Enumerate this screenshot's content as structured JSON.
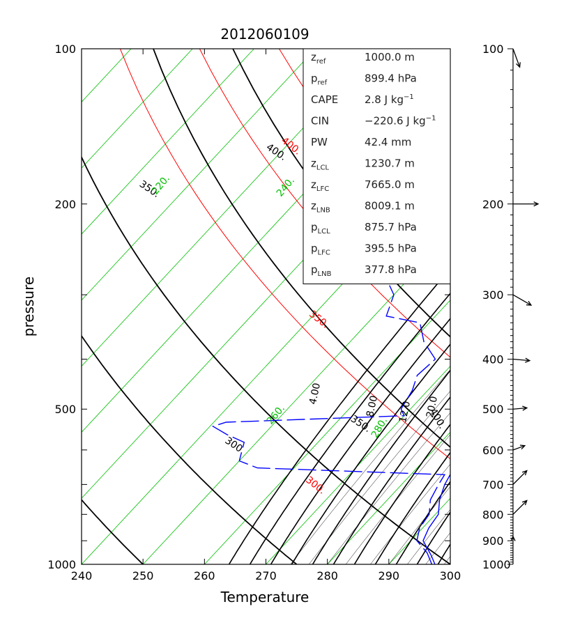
{
  "chart_data": {
    "type": "skew-t",
    "title": "2012060109",
    "xlabel": "Temperature",
    "ylabel": "pressure",
    "x_range": [
      240,
      300
    ],
    "y_range": [
      1000,
      100
    ],
    "y_scale": "log",
    "x_ticks": [
      "240",
      "250",
      "260",
      "270",
      "280",
      "290",
      "300"
    ],
    "y_ticks": [
      "100",
      "200",
      "500",
      "1000"
    ],
    "wind_ticks": [
      "100",
      "200",
      "300",
      "400",
      "500",
      "600",
      "700",
      "800",
      "900",
      "1000"
    ],
    "colors": {
      "dry_adiabat": "#000000",
      "isentrope": "#ff0000",
      "isotherm": "#00c000",
      "mixing_ratio": "#000000",
      "profile": "#0000ff"
    },
    "dry_adiabats": [
      {
        "theta": 300,
        "label": "300"
      },
      {
        "theta": 350,
        "label": "350."
      },
      {
        "theta": 400,
        "label": "400."
      }
    ],
    "isentropes": [
      {
        "theta": 300,
        "label": "300."
      },
      {
        "theta": 350,
        "label": "350."
      },
      {
        "theta": 400,
        "label": "400."
      }
    ],
    "isotherms": [
      {
        "t": 220,
        "label": "220."
      },
      {
        "t": 240,
        "label": "240."
      },
      {
        "t": 260,
        "label": "260."
      },
      {
        "t": 280,
        "label": "280."
      }
    ],
    "mixing_ratios": [
      {
        "w": 4,
        "label": "4.00"
      },
      {
        "w": 8,
        "label": "8.00"
      },
      {
        "w": 12,
        "label": "12.0"
      },
      {
        "w": 20,
        "label": "20.0"
      }
    ],
    "temperature_profile": [
      {
        "p": 1000,
        "t": 297.5
      },
      {
        "p": 960,
        "t": 295.5
      },
      {
        "p": 900,
        "t": 292.0
      },
      {
        "p": 850,
        "t": 291.0
      },
      {
        "p": 800,
        "t": 290.5
      },
      {
        "p": 750,
        "t": 288.5
      },
      {
        "p": 700,
        "t": 287.0
      },
      {
        "p": 650,
        "t": 286.0
      },
      {
        "p": 600,
        "t": 285.5
      },
      {
        "p": 550,
        "t": 284.5
      },
      {
        "p": 500,
        "t": 282.0
      },
      {
        "p": 450,
        "t": 278.5
      },
      {
        "p": 400,
        "t": 274.0
      },
      {
        "p": 350,
        "t": 269.0
      },
      {
        "p": 300,
        "t": 263.5
      },
      {
        "p": 260,
        "t": 258.5
      },
      {
        "p": 230,
        "t": 253.0
      },
      {
        "p": 200,
        "t": 248.0
      },
      {
        "p": 180,
        "t": 246.0
      },
      {
        "p": 160,
        "t": 245.0
      },
      {
        "p": 140,
        "t": 244.5
      },
      {
        "p": 120,
        "t": 243.5
      },
      {
        "p": 110,
        "t": 243.5
      },
      {
        "p": 100,
        "t": 244.5
      }
    ],
    "dewpoint_profile": [
      {
        "p": 1000,
        "t": 297.0
      },
      {
        "p": 950,
        "t": 294.5
      },
      {
        "p": 900,
        "t": 291.0
      },
      {
        "p": 850,
        "t": 289.5
      },
      {
        "p": 800,
        "t": 289.0
      },
      {
        "p": 750,
        "t": 287.0
      },
      {
        "p": 700,
        "t": 286.0
      },
      {
        "p": 670,
        "t": 285.5
      },
      {
        "p": 650,
        "t": 254.0
      },
      {
        "p": 630,
        "t": 250.0
      },
      {
        "p": 580,
        "t": 248.0
      },
      {
        "p": 560,
        "t": 244.0
      },
      {
        "p": 540,
        "t": 240.5
      },
      {
        "p": 530,
        "t": 242.0
      },
      {
        "p": 515,
        "t": 270.0
      },
      {
        "p": 500,
        "t": 268.5
      },
      {
        "p": 460,
        "t": 267.5
      },
      {
        "p": 430,
        "t": 266.0
      },
      {
        "p": 400,
        "t": 266.5
      },
      {
        "p": 370,
        "t": 262.0
      },
      {
        "p": 340,
        "t": 258.5
      },
      {
        "p": 330,
        "t": 252.0
      },
      {
        "p": 300,
        "t": 250.0
      },
      {
        "p": 280,
        "t": 246.5
      },
      {
        "p": 250,
        "t": 244.5
      },
      {
        "p": 220,
        "t": 242.5
      },
      {
        "p": 200,
        "t": 244.0
      },
      {
        "p": 190,
        "t": 242.5
      }
    ],
    "winds": [
      {
        "p": 100,
        "dir": 340,
        "spd": 28
      },
      {
        "p": 200,
        "dir": 270,
        "spd": 36
      },
      {
        "p": 300,
        "dir": 300,
        "spd": 30
      },
      {
        "p": 400,
        "dir": 275,
        "spd": 24
      },
      {
        "p": 500,
        "dir": 265,
        "spd": 20
      },
      {
        "p": 600,
        "dir": 250,
        "spd": 18
      },
      {
        "p": 700,
        "dir": 225,
        "spd": 28
      },
      {
        "p": 800,
        "dir": 225,
        "spd": 28
      },
      {
        "p": 900,
        "dir": 180,
        "spd": 6
      }
    ],
    "stats": [
      {
        "sym": "z",
        "sub": "ref",
        "text": "1000.0 m"
      },
      {
        "sym": "p",
        "sub": "ref",
        "text": "899.4 hPa"
      },
      {
        "sym": "CAPE",
        "sub": "",
        "text": "2.8 J kg",
        "sup": "−1"
      },
      {
        "sym": "CIN",
        "sub": "",
        "text": "−220.6 J kg",
        "sup": "−1"
      },
      {
        "sym": "PW",
        "sub": "",
        "text": "42.4 mm"
      },
      {
        "sym": "z",
        "sub": "LCL",
        "text": "1230.7 m"
      },
      {
        "sym": "z",
        "sub": "LFC",
        "text": "7665.0 m"
      },
      {
        "sym": "z",
        "sub": "LNB",
        "text": "8009.1 m"
      },
      {
        "sym": "p",
        "sub": "LCL",
        "text": "875.7 hPa"
      },
      {
        "sym": "p",
        "sub": "LFC",
        "text": "395.5 hPa"
      },
      {
        "sym": "p",
        "sub": "LNB",
        "text": "377.8 hPa"
      }
    ]
  }
}
